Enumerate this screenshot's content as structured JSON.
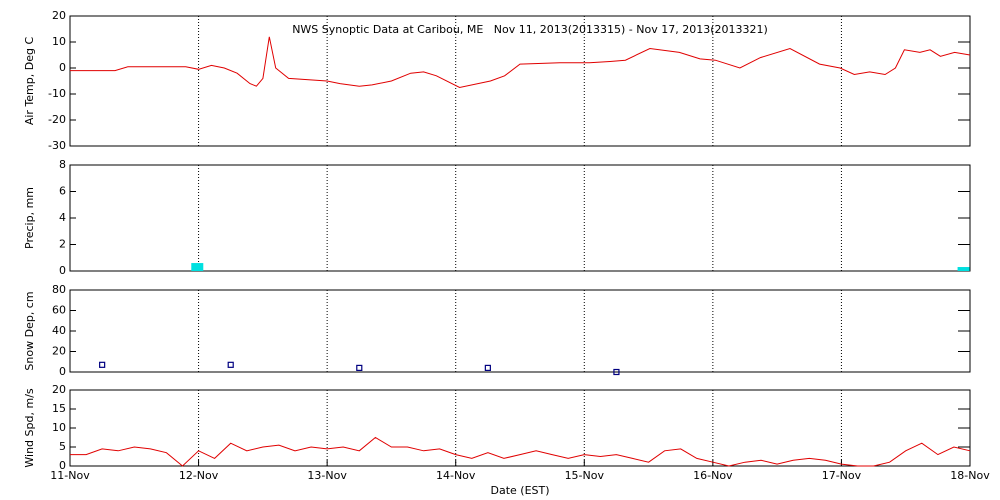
{
  "chart_data": [
    {
      "type": "line",
      "title": "NWS Synoptic Data at Caribou, ME   Nov 11, 2013(2013315) - Nov 17, 2013(2013321)",
      "ylabel": "Air Temp, Deg C",
      "color": "#e00000",
      "x": [
        0,
        0.35,
        0.45,
        0.9,
        1.0,
        1.1,
        1.2,
        1.3,
        1.4,
        1.45,
        1.5,
        1.55,
        1.6,
        1.7,
        2.0,
        2.1,
        2.25,
        2.35,
        2.5,
        2.65,
        2.75,
        2.85,
        3.03,
        3.27,
        3.38,
        3.5,
        3.81,
        4.04,
        4.2,
        4.32,
        4.51,
        4.74,
        4.9,
        5.02,
        5.21,
        5.37,
        5.6,
        5.83,
        5.99,
        6.1,
        6.22,
        6.34,
        6.42,
        6.49,
        6.61,
        6.69,
        6.77,
        6.88,
        7
      ],
      "values": [
        -1,
        -1,
        0.5,
        0.5,
        -0.5,
        1,
        0,
        -2,
        -6,
        -7,
        -4,
        12,
        0,
        -4,
        -5,
        -6,
        -7,
        -6.5,
        -5,
        -2,
        -1.5,
        -3,
        -7.5,
        -5,
        -3,
        1.5,
        2,
        2,
        2.5,
        3,
        7.5,
        6,
        3.5,
        3,
        0,
        4,
        7.5,
        1.5,
        0,
        -2.5,
        -1.5,
        -2.5,
        0,
        7,
        6,
        7,
        4.5,
        6,
        5
      ],
      "xlim": [
        0,
        7
      ],
      "ylim": [
        -30,
        20
      ],
      "yticks": [
        -30,
        -20,
        -10,
        0,
        10,
        20
      ],
      "grid": true
    },
    {
      "type": "bar",
      "ylabel": "Precip, mm",
      "color": "#00e0e0",
      "x": [
        0.99,
        6.95
      ],
      "values": [
        0.6,
        0.3
      ],
      "xlim": [
        0,
        7
      ],
      "ylim": [
        0,
        8
      ],
      "yticks": [
        0,
        2,
        4,
        6,
        8
      ],
      "grid": true
    },
    {
      "type": "scatter",
      "ylabel": "Snow Dep, cm",
      "color": "#000080",
      "x": [
        0.25,
        1.25,
        2.25,
        3.25,
        4.25
      ],
      "values": [
        7,
        7,
        4,
        4,
        0
      ],
      "xlim": [
        0,
        7
      ],
      "ylim": [
        0,
        80
      ],
      "yticks": [
        0,
        20,
        40,
        60,
        80
      ],
      "grid": true
    },
    {
      "type": "line",
      "ylabel": "Wind Spd, m/s",
      "xlabel": "Date (EST)",
      "color": "#e00000",
      "x": [
        0,
        0.125,
        0.25,
        0.375,
        0.5,
        0.625,
        0.75,
        0.875,
        1,
        1.125,
        1.25,
        1.375,
        1.5,
        1.625,
        1.75,
        1.875,
        2,
        2.125,
        2.25,
        2.375,
        2.5,
        2.625,
        2.75,
        2.875,
        3,
        3.125,
        3.25,
        3.375,
        3.5,
        3.625,
        3.75,
        3.875,
        4,
        4.125,
        4.25,
        4.375,
        4.5,
        4.625,
        4.75,
        4.875,
        5,
        5.125,
        5.25,
        5.375,
        5.5,
        5.625,
        5.75,
        5.875,
        6,
        6.125,
        6.25,
        6.375,
        6.5,
        6.625,
        6.75,
        6.875,
        7
      ],
      "values": [
        3,
        3,
        4.5,
        4,
        5,
        4.5,
        3.5,
        0,
        4,
        2,
        6,
        4,
        5,
        5.5,
        4,
        5,
        4.5,
        5,
        4,
        7.5,
        5,
        5,
        4,
        4.5,
        3,
        2,
        3.5,
        2,
        3,
        4,
        3,
        2,
        3,
        2.5,
        3,
        2,
        1,
        4,
        4.5,
        2,
        1,
        0,
        1,
        1.5,
        0.5,
        1.5,
        2,
        1.5,
        0.5,
        0,
        0,
        1,
        4,
        6,
        3,
        5,
        4
      ],
      "xlim": [
        0,
        7
      ],
      "ylim": [
        0,
        20
      ],
      "yticks": [
        0,
        5,
        10,
        15,
        20
      ],
      "grid": true,
      "xticks": [
        {
          "value": 0,
          "label": "11-Nov"
        },
        {
          "value": 1,
          "label": "12-Nov"
        },
        {
          "value": 2,
          "label": "13-Nov"
        },
        {
          "value": 3,
          "label": "14-Nov"
        },
        {
          "value": 4,
          "label": "15-Nov"
        },
        {
          "value": 5,
          "label": "16-Nov"
        },
        {
          "value": 6,
          "label": "17-Nov"
        },
        {
          "value": 7,
          "label": "18-Nov"
        }
      ]
    }
  ]
}
